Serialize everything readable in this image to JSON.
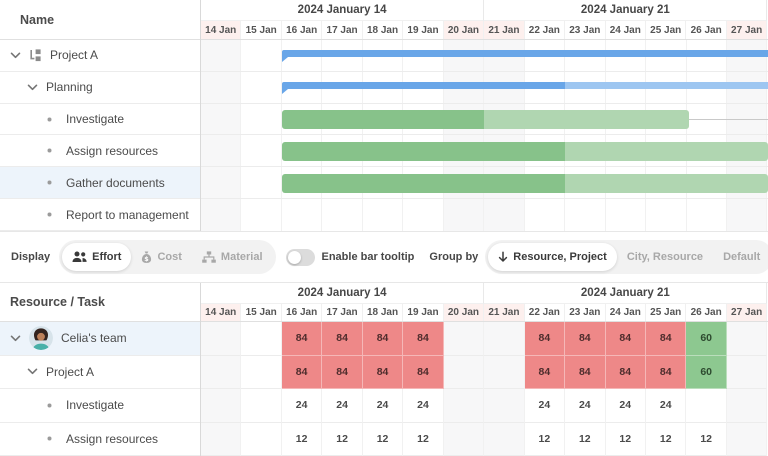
{
  "colors": {
    "bar_blue": "#69a6e8",
    "bar_blue_light": "#9dc6f1",
    "bar_green": "#87c28a",
    "bar_green_light": "#b0d6b1",
    "cell_overallocated": "#ee8888",
    "cell_ok": "#8dc890",
    "cell_over_text": "#4d2c2c",
    "cell_ok_text": "#2d4a2f",
    "weekend_body": "#f7f7f8",
    "weekend_header": "#fdf0ee",
    "row_highlight": "#edf4fb"
  },
  "timeline": {
    "weeks": [
      "2024 January 14",
      "2024 January 21"
    ],
    "days": [
      {
        "label": "14 Jan",
        "weekend": true
      },
      {
        "label": "15 Jan",
        "weekend": false
      },
      {
        "label": "16 Jan",
        "weekend": false
      },
      {
        "label": "17 Jan",
        "weekend": false
      },
      {
        "label": "18 Jan",
        "weekend": false
      },
      {
        "label": "19 Jan",
        "weekend": false
      },
      {
        "label": "20 Jan",
        "weekend": true
      },
      {
        "label": "21 Jan",
        "weekend": true
      },
      {
        "label": "22 Jan",
        "weekend": false
      },
      {
        "label": "23 Jan",
        "weekend": false
      },
      {
        "label": "24 Jan",
        "weekend": false
      },
      {
        "label": "25 Jan",
        "weekend": false
      },
      {
        "label": "26 Jan",
        "weekend": false
      },
      {
        "label": "27 Jan",
        "weekend": true
      }
    ]
  },
  "gantt": {
    "header": "Name",
    "rows": [
      {
        "label": "Project A",
        "level": 0,
        "expander": true,
        "icon": "project-icon",
        "highlight": false
      },
      {
        "label": "Planning",
        "level": 1,
        "expander": true,
        "highlight": false
      },
      {
        "label": "Investigate",
        "level": 2,
        "bullet": true,
        "highlight": false
      },
      {
        "label": "Assign resources",
        "level": 2,
        "bullet": true,
        "highlight": false
      },
      {
        "label": "Gather documents",
        "level": 2,
        "bullet": true,
        "highlight": true
      },
      {
        "label": "Report to management",
        "level": 2,
        "bullet": true,
        "highlight": false
      }
    ],
    "bars": [
      {
        "row": 0,
        "type": "summary",
        "start": 2,
        "end": 14.2,
        "split": 14.2,
        "trail": false
      },
      {
        "row": 1,
        "type": "summary",
        "start": 2,
        "end": 14.2,
        "split": 9,
        "trail": false
      },
      {
        "row": 2,
        "type": "task",
        "start": 2,
        "end": 12.05,
        "split": 7,
        "trail": true
      },
      {
        "row": 3,
        "type": "task",
        "start": 2,
        "end": 14.2,
        "split": 9,
        "trail": false
      },
      {
        "row": 4,
        "type": "task",
        "start": 2,
        "end": 14.2,
        "split": 9,
        "trail": false
      }
    ]
  },
  "toolbar": {
    "display_label": "Display",
    "display_options": [
      {
        "label": "Effort",
        "icon": "users-icon",
        "active": true
      },
      {
        "label": "Cost",
        "icon": "money-bag-icon",
        "active": false
      },
      {
        "label": "Material",
        "icon": "sitemap-icon",
        "active": false
      }
    ],
    "tooltip_toggle": {
      "label": "Enable bar tooltip",
      "on": false
    },
    "groupby_label": "Group by",
    "groupby_options": [
      {
        "label": "Resource, Project",
        "icon": "arrow-down-icon",
        "active": true
      },
      {
        "label": "City, Resource",
        "active": false
      },
      {
        "label": "Default",
        "active": false
      }
    ]
  },
  "histogram": {
    "header": "Resource / Task",
    "rows": [
      {
        "label": "Celia's team",
        "level": 0,
        "expander": true,
        "avatar": true,
        "highlight": true,
        "cells": [
          {
            "day": 2,
            "value": "84",
            "state": "over"
          },
          {
            "day": 3,
            "value": "84",
            "state": "over"
          },
          {
            "day": 4,
            "value": "84",
            "state": "over"
          },
          {
            "day": 5,
            "value": "84",
            "state": "over"
          },
          {
            "day": 8,
            "value": "84",
            "state": "over"
          },
          {
            "day": 9,
            "value": "84",
            "state": "over"
          },
          {
            "day": 10,
            "value": "84",
            "state": "over"
          },
          {
            "day": 11,
            "value": "84",
            "state": "over"
          },
          {
            "day": 12,
            "value": "60",
            "state": "ok"
          }
        ]
      },
      {
        "label": "Project A",
        "level": 1,
        "expander": true,
        "avatar": false,
        "highlight": false,
        "cells": [
          {
            "day": 2,
            "value": "84",
            "state": "over"
          },
          {
            "day": 3,
            "value": "84",
            "state": "over"
          },
          {
            "day": 4,
            "value": "84",
            "state": "over"
          },
          {
            "day": 5,
            "value": "84",
            "state": "over"
          },
          {
            "day": 8,
            "value": "84",
            "state": "over"
          },
          {
            "day": 9,
            "value": "84",
            "state": "over"
          },
          {
            "day": 10,
            "value": "84",
            "state": "over"
          },
          {
            "day": 11,
            "value": "84",
            "state": "over"
          },
          {
            "day": 12,
            "value": "60",
            "state": "ok"
          }
        ]
      },
      {
        "label": "Investigate",
        "level": 2,
        "bullet": true,
        "avatar": false,
        "highlight": false,
        "cells": [
          {
            "day": 2,
            "value": "24",
            "state": "plain"
          },
          {
            "day": 3,
            "value": "24",
            "state": "plain"
          },
          {
            "day": 4,
            "value": "24",
            "state": "plain"
          },
          {
            "day": 5,
            "value": "24",
            "state": "plain"
          },
          {
            "day": 8,
            "value": "24",
            "state": "plain"
          },
          {
            "day": 9,
            "value": "24",
            "state": "plain"
          },
          {
            "day": 10,
            "value": "24",
            "state": "plain"
          },
          {
            "day": 11,
            "value": "24",
            "state": "plain"
          }
        ]
      },
      {
        "label": "Assign resources",
        "level": 2,
        "bullet": true,
        "avatar": false,
        "highlight": false,
        "cells": [
          {
            "day": 2,
            "value": "12",
            "state": "plain"
          },
          {
            "day": 3,
            "value": "12",
            "state": "plain"
          },
          {
            "day": 4,
            "value": "12",
            "state": "plain"
          },
          {
            "day": 5,
            "value": "12",
            "state": "plain"
          },
          {
            "day": 8,
            "value": "12",
            "state": "plain"
          },
          {
            "day": 9,
            "value": "12",
            "state": "plain"
          },
          {
            "day": 10,
            "value": "12",
            "state": "plain"
          },
          {
            "day": 11,
            "value": "12",
            "state": "plain"
          },
          {
            "day": 12,
            "value": "12",
            "state": "plain"
          }
        ]
      }
    ]
  }
}
